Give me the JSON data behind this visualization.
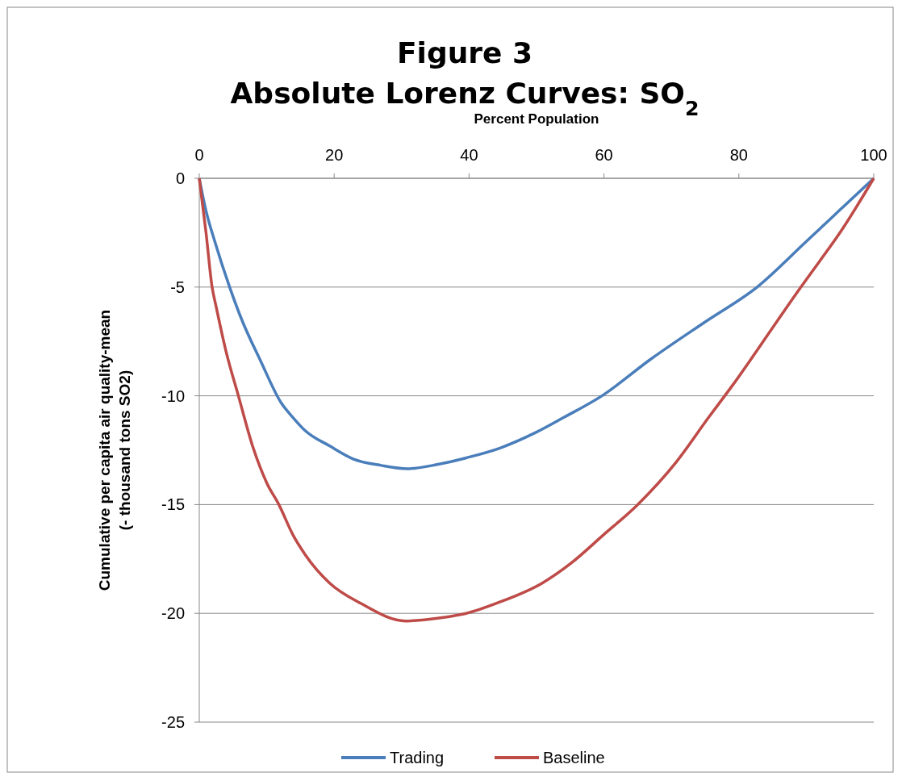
{
  "chart_data": {
    "type": "line",
    "title": "Figure 3\nAbsolute Lorenz Curves:  SO$_{2}$",
    "xlabel": "Percent Population",
    "ylabel": "Cumulative per capita air quality-mean\n(- thousand tons SO2)",
    "xlim": [
      0,
      100
    ],
    "xticks": [
      0,
      20,
      40,
      60,
      80,
      100
    ],
    "ylim": [
      -25,
      0
    ],
    "yticks": [
      -25,
      -20,
      -15,
      -10,
      -5,
      0
    ],
    "grid": "y",
    "legend": "bottom",
    "marker": "none",
    "line_style": "solid",
    "series": [
      {
        "name": "Trading",
        "color": "#4a7ebb",
        "x": [
          0,
          1,
          2.3,
          4.5,
          6.3,
          9.1,
          12.1,
          13.9,
          15.7,
          19.3,
          22.8,
          27,
          30.9,
          35.4,
          39.6,
          44.6,
          49.8,
          54,
          59.7,
          67,
          75,
          82.7,
          90,
          95,
          100
        ],
        "values": [
          0,
          -1.5,
          -2.9,
          -5,
          -6.5,
          -8.4,
          -10.3,
          -11,
          -11.6,
          -12.3,
          -12.9,
          -13.2,
          -13.35,
          -13.15,
          -12.85,
          -12.4,
          -11.7,
          -11,
          -10,
          -8.3,
          -6.6,
          -5,
          -2.9,
          -1.45,
          0
        ]
      },
      {
        "name": "Baseline",
        "color": "#be4b48",
        "x": [
          0,
          1,
          1.9,
          2.5,
          4,
          5.8,
          8,
          10,
          11.8,
          13.9,
          15.7,
          19.3,
          24,
          30.6,
          36,
          39.6,
          44.4,
          50.9,
          55.1,
          59.9,
          65,
          70.7,
          75.5,
          79.1,
          85.6,
          89.2,
          92,
          95.2,
          100
        ],
        "values": [
          0,
          -2.5,
          -5,
          -5.9,
          -8,
          -10,
          -12.4,
          -14,
          -15,
          -16.4,
          -17.3,
          -18.6,
          -19.55,
          -20.35,
          -20.2,
          -20,
          -19.5,
          -18.6,
          -17.7,
          -16.4,
          -15,
          -13.05,
          -11,
          -9.5,
          -6.6,
          -5,
          -3.8,
          -2.4,
          0
        ]
      }
    ]
  }
}
